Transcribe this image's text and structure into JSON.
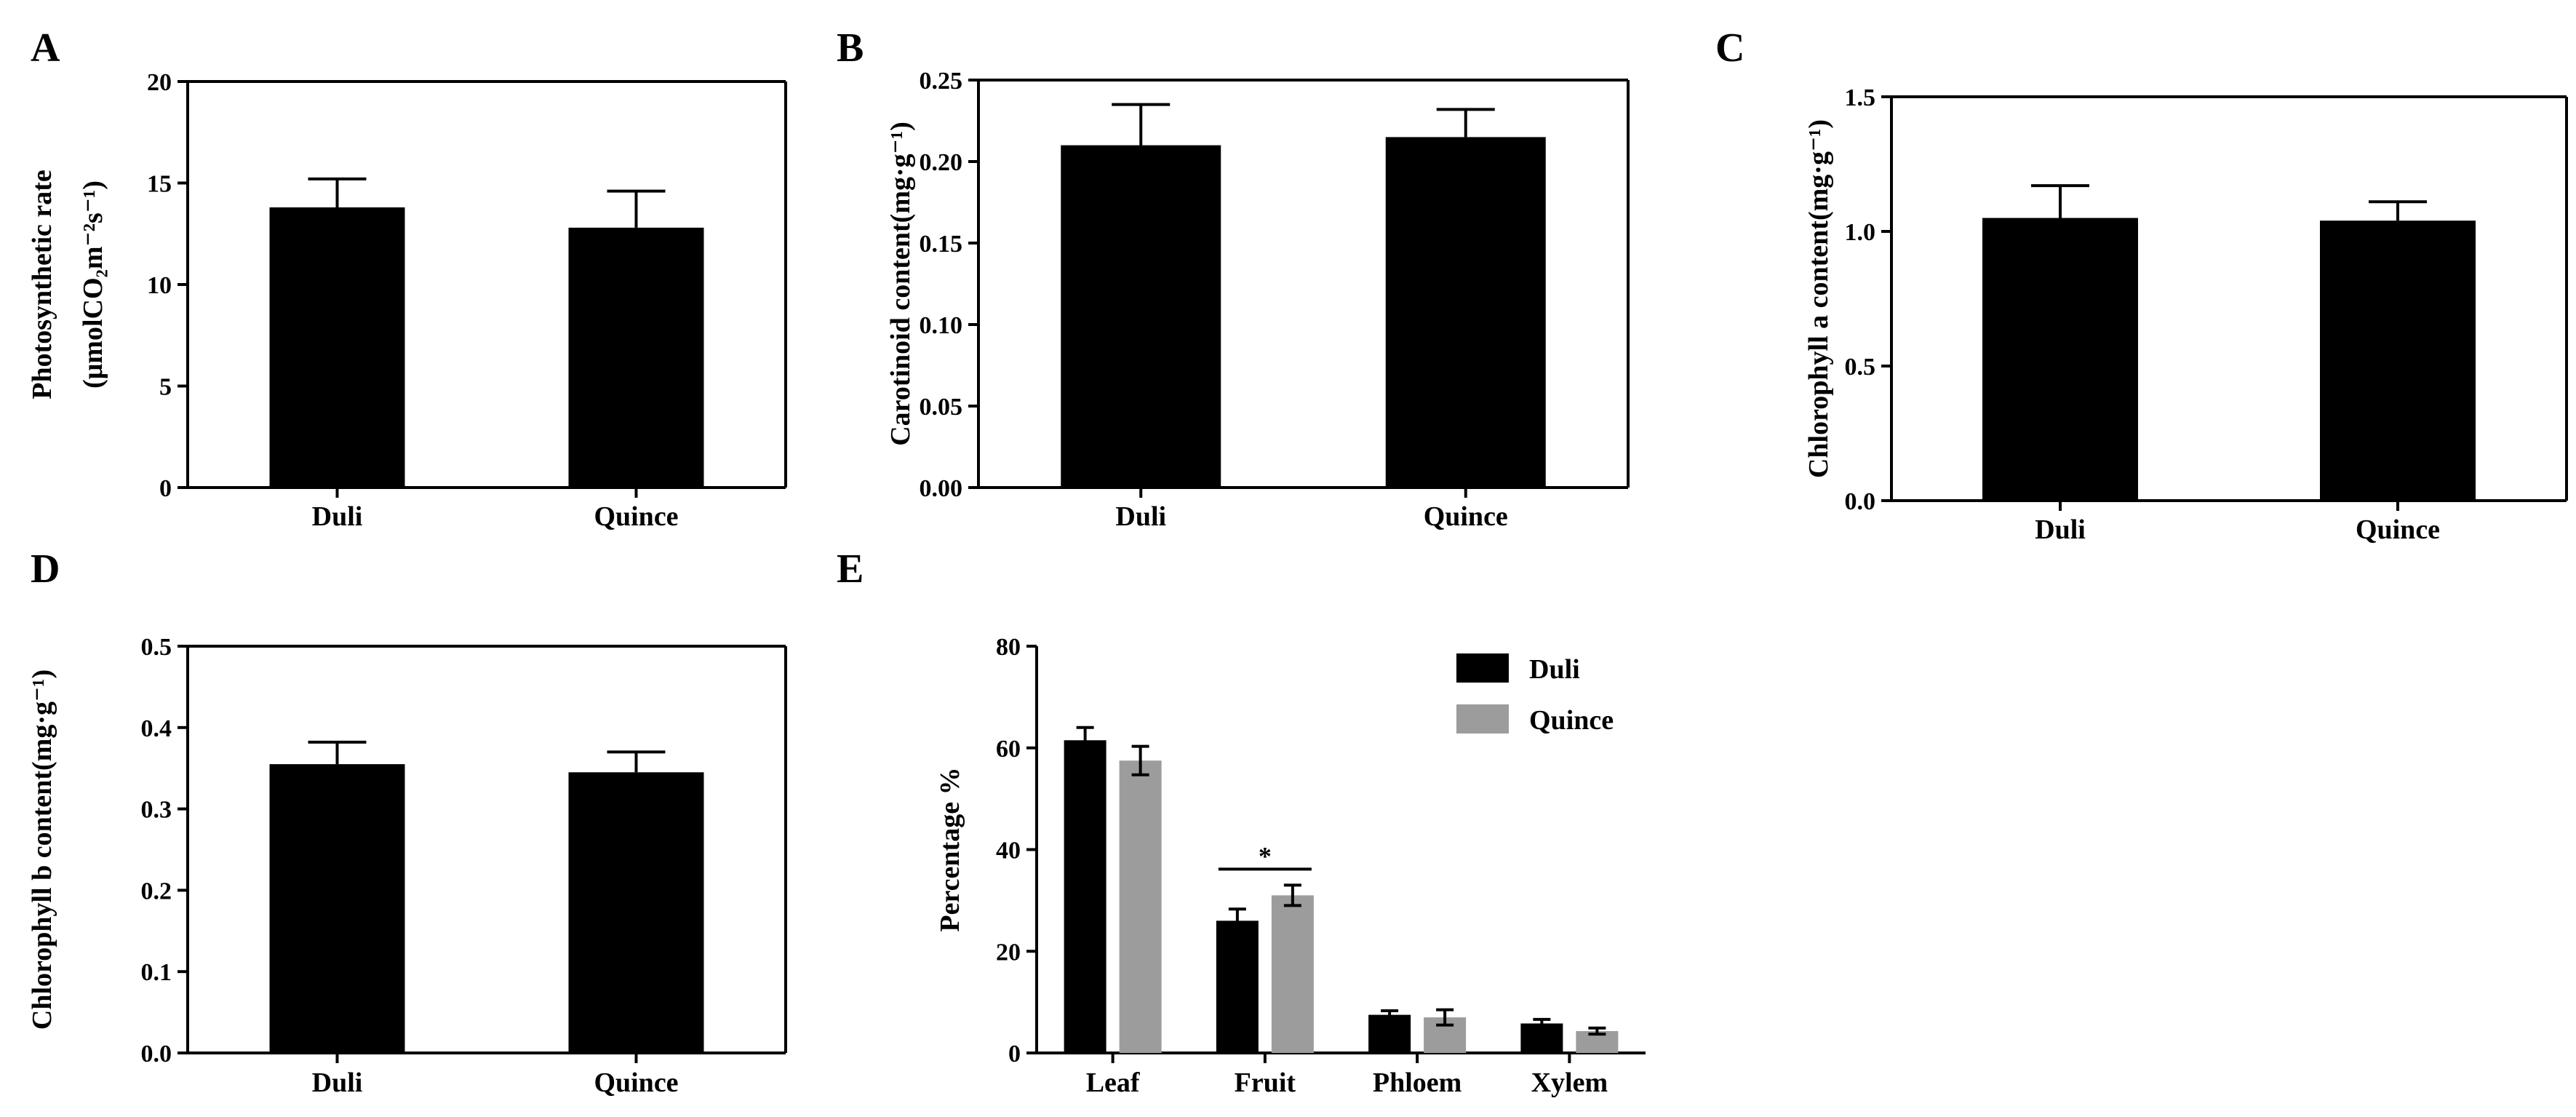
{
  "figure": {
    "panels": [
      {
        "id": "A",
        "letter": "A"
      },
      {
        "id": "B",
        "letter": "B"
      },
      {
        "id": "C",
        "letter": "C"
      },
      {
        "id": "D",
        "letter": "D"
      },
      {
        "id": "E",
        "letter": "E"
      }
    ]
  },
  "chart_data": [
    {
      "panel": "A",
      "type": "bar",
      "categories": [
        "Duli",
        "Quince"
      ],
      "series": [
        {
          "values": [
            13.8,
            12.8
          ],
          "errors": [
            1.4,
            1.8
          ],
          "color": "#000000"
        }
      ],
      "ylabel_lines": [
        "Photosynthetic rate",
        "(μmolCO₂m⁻²s⁻¹)"
      ],
      "ylim": [
        0,
        20
      ],
      "yticks": [
        0,
        5,
        10,
        15,
        20
      ],
      "ytick_labels": [
        "0",
        "5",
        "10",
        "15",
        "20"
      ]
    },
    {
      "panel": "B",
      "type": "bar",
      "categories": [
        "Duli",
        "Quince"
      ],
      "series": [
        {
          "values": [
            0.21,
            0.215
          ],
          "errors": [
            0.025,
            0.017
          ],
          "color": "#000000"
        }
      ],
      "ylabel_lines": [
        "Carotinoid content(mg·g⁻¹)"
      ],
      "ylim": [
        0,
        0.25
      ],
      "yticks": [
        0,
        0.05,
        0.1,
        0.15,
        0.2,
        0.25
      ],
      "ytick_labels": [
        "0.00",
        "0.05",
        "0.10",
        "0.15",
        "0.20",
        "0.25"
      ]
    },
    {
      "panel": "C",
      "type": "bar",
      "categories": [
        "Duli",
        "Quince"
      ],
      "series": [
        {
          "values": [
            1.05,
            1.04
          ],
          "errors": [
            0.12,
            0.07
          ],
          "color": "#000000"
        }
      ],
      "ylabel_lines": [
        "Chlorophyll a content(mg·g⁻¹)"
      ],
      "ylim": [
        0,
        1.5
      ],
      "yticks": [
        0,
        0.5,
        1.0,
        1.5
      ],
      "ytick_labels": [
        "0.0",
        "0.5",
        "1.0",
        "1.5"
      ]
    },
    {
      "panel": "D",
      "type": "bar",
      "categories": [
        "Duli",
        "Quince"
      ],
      "series": [
        {
          "values": [
            0.355,
            0.345
          ],
          "errors": [
            0.027,
            0.025
          ],
          "color": "#000000"
        }
      ],
      "ylabel_lines": [
        "Chlorophyll b content(mg·g⁻¹)"
      ],
      "ylim": [
        0,
        0.5
      ],
      "yticks": [
        0,
        0.1,
        0.2,
        0.3,
        0.4,
        0.5
      ],
      "ytick_labels": [
        "0.0",
        "0.1",
        "0.2",
        "0.3",
        "0.4",
        "0.5"
      ]
    },
    {
      "panel": "E",
      "type": "bar",
      "categories": [
        "Leaf",
        "Fruit",
        "Phloem",
        "Xylem"
      ],
      "series": [
        {
          "name": "Duli",
          "values": [
            61.5,
            26.0,
            7.5,
            5.8
          ],
          "errors": [
            2.5,
            2.3,
            0.8,
            0.8
          ],
          "color": "#000000"
        },
        {
          "name": "Quince",
          "values": [
            57.5,
            31.0,
            7.0,
            4.3
          ],
          "errors": [
            2.8,
            2.0,
            1.5,
            0.6
          ],
          "color": "#9c9c9c"
        }
      ],
      "ylabel_lines": [
        "Percentage %"
      ],
      "ylim": [
        0,
        80
      ],
      "yticks": [
        0,
        20,
        40,
        60,
        80
      ],
      "ytick_labels": [
        "0",
        "20",
        "40",
        "60",
        "80"
      ],
      "legend": "top-right",
      "significance": [
        {
          "category": "Fruit",
          "label": "*"
        }
      ]
    }
  ]
}
